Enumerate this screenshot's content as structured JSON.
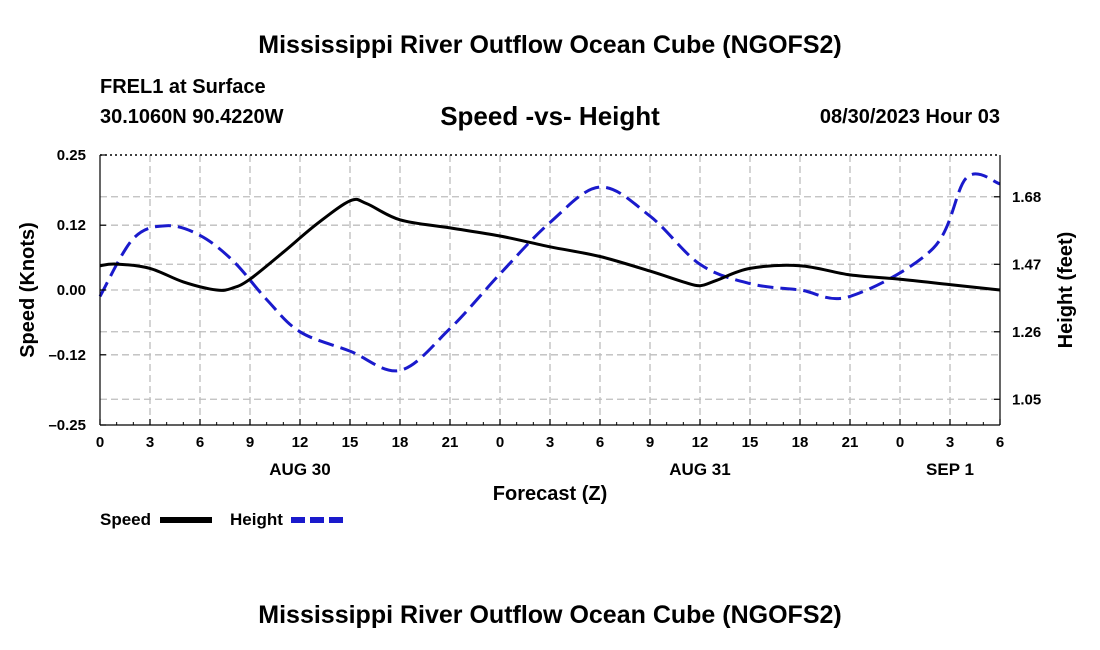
{
  "header": {
    "title": "Mississippi River Outflow Ocean Cube (NGOFS2)",
    "station": "FREL1 at Surface",
    "coordinates": "30.1060N  90.4220W",
    "subtitle": "Speed -vs- Height",
    "timestamp": "08/30/2023 Hour 03"
  },
  "footer": {
    "title": "Mississippi River Outflow Ocean Cube (NGOFS2)"
  },
  "colors": {
    "speed": "#000000",
    "height": "#1a1acc",
    "grid": "#bdbdbd"
  },
  "chart_data": {
    "type": "line",
    "xlabel": "Forecast (Z)",
    "ylabel": "Speed (Knots)",
    "y2label": "Height (feet)",
    "xlim": [
      0,
      54
    ],
    "ylim": [
      -0.25,
      0.25
    ],
    "y2lim": [
      0.97,
      1.81
    ],
    "x_ticks": [
      0,
      3,
      6,
      9,
      12,
      15,
      18,
      21,
      24,
      27,
      30,
      33,
      36,
      39,
      42,
      45,
      48,
      51,
      54
    ],
    "x_tick_labels": [
      "0",
      "3",
      "6",
      "9",
      "12",
      "15",
      "18",
      "21",
      "0",
      "3",
      "6",
      "9",
      "12",
      "15",
      "18",
      "21",
      "0",
      "3",
      "6"
    ],
    "date_labels": [
      {
        "x": 12,
        "label": "AUG 30"
      },
      {
        "x": 36,
        "label": "AUG 31"
      },
      {
        "x": 51,
        "label": "SEP 1"
      }
    ],
    "y_ticks": [
      -0.25,
      -0.12,
      0.0,
      0.12,
      0.25
    ],
    "y_tick_labels": [
      "–0.25",
      "–0.12",
      "0.00",
      "0.12",
      "0.25"
    ],
    "y2_ticks": [
      1.05,
      1.26,
      1.47,
      1.68
    ],
    "y2_tick_labels": [
      "1.05",
      "1.26",
      "1.47",
      "1.68"
    ],
    "grid": true,
    "legend_position": "bottom-left",
    "series": [
      {
        "name": "Speed",
        "axis": "left",
        "style": "solid",
        "x": [
          0,
          1,
          3,
          5,
          7,
          8,
          9,
          11,
          13,
          15,
          16,
          18,
          21,
          24,
          27,
          30,
          33,
          35,
          36,
          37,
          39,
          42,
          45,
          48,
          51,
          54
        ],
        "y": [
          0.045,
          0.048,
          0.04,
          0.015,
          0.0,
          0.004,
          0.02,
          0.07,
          0.122,
          0.165,
          0.16,
          0.13,
          0.115,
          0.1,
          0.08,
          0.062,
          0.035,
          0.015,
          0.008,
          0.018,
          0.04,
          0.045,
          0.028,
          0.02,
          0.01,
          0.0
        ]
      },
      {
        "name": "Height",
        "axis": "right",
        "style": "dashed",
        "x": [
          0,
          2,
          4,
          6,
          8,
          10,
          12,
          15,
          18,
          21,
          24,
          27,
          30,
          33,
          36,
          39,
          42,
          45,
          50,
          52,
          54
        ],
        "y": [
          1.37,
          1.55,
          1.59,
          1.56,
          1.48,
          1.36,
          1.26,
          1.2,
          1.14,
          1.27,
          1.44,
          1.6,
          1.71,
          1.62,
          1.47,
          1.41,
          1.39,
          1.37,
          1.52,
          1.74,
          1.72
        ]
      }
    ]
  }
}
